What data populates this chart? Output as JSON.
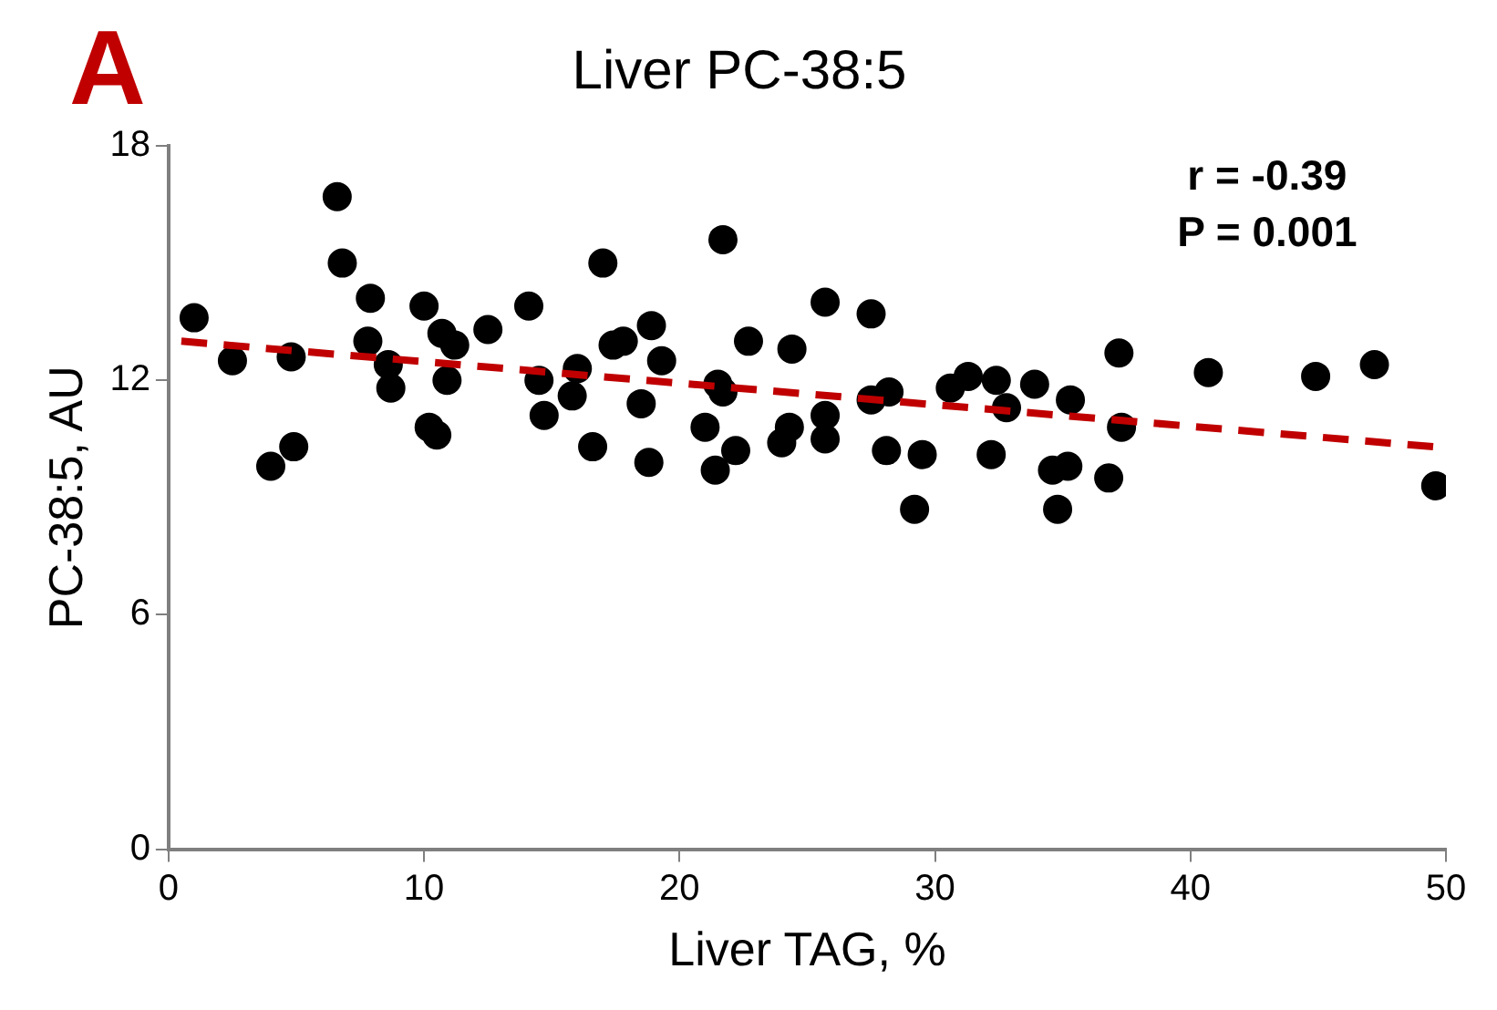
{
  "chart_data": {
    "type": "scatter",
    "title": "Liver PC-38:5",
    "xlabel": "Liver TAG, %",
    "ylabel": "PC-38:5, AU",
    "annotations": [
      "A",
      "r = -0.39",
      "P = 0.001"
    ],
    "xlim": [
      0,
      50
    ],
    "xticks": [
      0,
      10,
      20,
      30,
      40,
      50
    ],
    "ylim": [
      0,
      18
    ],
    "yticks": [
      0,
      6,
      12,
      18
    ],
    "marker": "circle",
    "legend": false,
    "series": [
      {
        "type": "scatter",
        "color": "#000000",
        "x": [
          1.0,
          2.5,
          4.8,
          4.0,
          4.9,
          6.6,
          6.8,
          7.9,
          7.8,
          8.6,
          8.7,
          10.0,
          10.7,
          11.2,
          10.9,
          10.2,
          10.5,
          12.5,
          14.1,
          14.5,
          14.7,
          15.8,
          16.0,
          16.6,
          17.0,
          17.4,
          17.8,
          18.9,
          19.3,
          18.5,
          18.8,
          21.7,
          21.5,
          21.7,
          21.0,
          21.4,
          22.2,
          22.7,
          24.4,
          24.3,
          24.0,
          25.7,
          25.7,
          25.7,
          27.5,
          28.2,
          27.5,
          28.1,
          29.5,
          29.2,
          30.6,
          31.3,
          32.4,
          32.8,
          32.2,
          33.9,
          35.3,
          37.2,
          37.3,
          34.6,
          35.2,
          34.8,
          36.8,
          40.7,
          44.9,
          47.2,
          49.6
        ],
        "values": [
          13.6,
          12.5,
          12.6,
          9.8,
          10.3,
          16.7,
          15.0,
          14.1,
          13.0,
          12.4,
          11.8,
          13.9,
          13.2,
          12.9,
          12.0,
          10.8,
          10.6,
          13.3,
          13.9,
          12.0,
          11.1,
          11.6,
          12.3,
          10.3,
          15.0,
          12.9,
          13.0,
          13.4,
          12.5,
          11.4,
          9.9,
          15.6,
          11.9,
          11.7,
          10.8,
          9.7,
          10.2,
          13.0,
          12.8,
          10.8,
          10.4,
          14.0,
          11.1,
          10.5,
          13.7,
          11.7,
          11.5,
          10.2,
          10.1,
          8.7,
          11.8,
          12.1,
          12.0,
          11.3,
          10.1,
          11.9,
          11.5,
          12.7,
          10.8,
          9.7,
          9.8,
          8.7,
          9.5,
          12.2,
          12.1,
          12.4,
          9.3
        ]
      },
      {
        "type": "line",
        "color": "#c00000",
        "line_style": "dashed",
        "marker": "none",
        "x": [
          0.5,
          49.5
        ],
        "values": [
          13.0,
          10.3
        ]
      }
    ]
  }
}
